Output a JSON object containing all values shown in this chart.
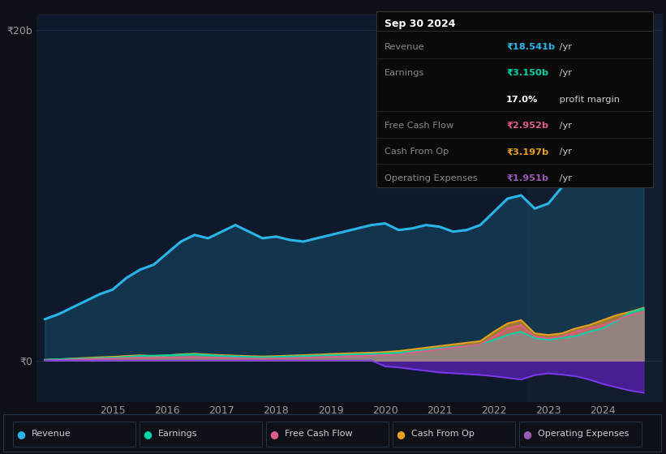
{
  "background_color": "#0d1117",
  "plot_bg_color": "#0e1a2b",
  "grid_color": "#253a50",
  "years": [
    2013.75,
    2014.0,
    2014.25,
    2014.5,
    2014.75,
    2015.0,
    2015.25,
    2015.5,
    2015.75,
    2016.0,
    2016.25,
    2016.5,
    2016.75,
    2017.0,
    2017.25,
    2017.5,
    2017.75,
    2018.0,
    2018.25,
    2018.5,
    2018.75,
    2019.0,
    2019.25,
    2019.5,
    2019.75,
    2020.0,
    2020.25,
    2020.5,
    2020.75,
    2021.0,
    2021.25,
    2021.5,
    2021.75,
    2022.0,
    2022.25,
    2022.5,
    2022.75,
    2023.0,
    2023.25,
    2023.5,
    2023.75,
    2024.0,
    2024.25,
    2024.5,
    2024.75
  ],
  "revenue": [
    2.5,
    2.8,
    3.2,
    3.6,
    4.0,
    4.3,
    5.0,
    5.5,
    5.8,
    6.5,
    7.2,
    7.6,
    7.4,
    7.8,
    8.2,
    7.8,
    7.4,
    7.5,
    7.3,
    7.2,
    7.4,
    7.6,
    7.8,
    8.0,
    8.2,
    8.3,
    7.9,
    8.0,
    8.2,
    8.1,
    7.8,
    7.9,
    8.2,
    9.0,
    9.8,
    10.0,
    9.2,
    9.5,
    10.5,
    11.5,
    12.5,
    13.5,
    16.0,
    18.0,
    18.541
  ],
  "earnings": [
    0.05,
    0.08,
    0.1,
    0.12,
    0.15,
    0.18,
    0.22,
    0.28,
    0.3,
    0.32,
    0.35,
    0.38,
    0.33,
    0.28,
    0.26,
    0.22,
    0.2,
    0.22,
    0.25,
    0.27,
    0.3,
    0.32,
    0.35,
    0.38,
    0.4,
    0.42,
    0.48,
    0.55,
    0.65,
    0.75,
    0.82,
    0.88,
    0.98,
    1.25,
    1.55,
    1.75,
    1.35,
    1.25,
    1.38,
    1.48,
    1.75,
    1.95,
    2.4,
    2.9,
    3.15
  ],
  "free_cash_flow": [
    0.01,
    0.03,
    0.05,
    0.08,
    0.1,
    0.12,
    0.15,
    0.18,
    0.16,
    0.18,
    0.2,
    0.22,
    0.18,
    0.17,
    0.15,
    0.13,
    0.11,
    0.13,
    0.15,
    0.17,
    0.2,
    0.22,
    0.25,
    0.28,
    0.3,
    0.32,
    0.35,
    0.48,
    0.58,
    0.68,
    0.78,
    0.88,
    0.98,
    1.45,
    1.95,
    2.15,
    1.45,
    1.35,
    1.45,
    1.75,
    1.95,
    2.15,
    2.45,
    2.75,
    2.952
  ],
  "cash_from_op": [
    0.05,
    0.08,
    0.12,
    0.16,
    0.2,
    0.23,
    0.28,
    0.32,
    0.28,
    0.32,
    0.38,
    0.42,
    0.37,
    0.33,
    0.3,
    0.27,
    0.25,
    0.27,
    0.3,
    0.33,
    0.36,
    0.4,
    0.43,
    0.46,
    0.48,
    0.52,
    0.58,
    0.68,
    0.78,
    0.88,
    0.98,
    1.08,
    1.18,
    1.75,
    2.25,
    2.45,
    1.65,
    1.55,
    1.65,
    1.95,
    2.15,
    2.45,
    2.75,
    2.95,
    3.197
  ],
  "op_expenses": [
    0.0,
    0.0,
    0.0,
    0.0,
    0.0,
    0.0,
    0.0,
    0.0,
    0.0,
    0.0,
    0.0,
    0.0,
    0.0,
    0.0,
    0.0,
    0.0,
    0.0,
    0.0,
    0.0,
    0.0,
    0.0,
    0.0,
    0.0,
    0.0,
    0.0,
    0.35,
    0.42,
    0.52,
    0.62,
    0.72,
    0.77,
    0.82,
    0.87,
    0.95,
    1.05,
    1.15,
    0.88,
    0.78,
    0.85,
    0.95,
    1.15,
    1.42,
    1.62,
    1.82,
    1.951
  ],
  "revenue_line_color": "#29b5e8",
  "revenue_fill_color": "#1a4a6b",
  "earnings_color": "#00d4aa",
  "free_cash_flow_color": "#e05c8a",
  "cash_from_op_color": "#e8a020",
  "op_expenses_color": "#7c3aed",
  "op_expenses_fill_color": "#5b21b6",
  "ylabel_top": "₹20b",
  "ylabel_zero": "₹0",
  "xtick_labels": [
    "2015",
    "2016",
    "2017",
    "2018",
    "2019",
    "2020",
    "2021",
    "2022",
    "2023",
    "2024"
  ],
  "xtick_positions": [
    2015,
    2016,
    2017,
    2018,
    2019,
    2020,
    2021,
    2022,
    2023,
    2024
  ],
  "ylim": [
    -2.5,
    21.0
  ],
  "xlim_start": 2013.6,
  "xlim_end": 2025.1,
  "shade_start": 2022.62,
  "tooltip": {
    "date": "Sep 30 2024",
    "date_color": "#ffffff",
    "rows": [
      {
        "label": "Revenue",
        "value": "₹18.541b",
        "suffix": " /yr",
        "value_color": "#29b5e8",
        "separator": true
      },
      {
        "label": "Earnings",
        "value": "₹3.150b",
        "suffix": " /yr",
        "value_color": "#00d4aa",
        "separator": false
      },
      {
        "label": "",
        "value": "17.0%",
        "suffix": " profit margin",
        "value_color": "#ffffff",
        "separator": true
      },
      {
        "label": "Free Cash Flow",
        "value": "₹2.952b",
        "suffix": " /yr",
        "value_color": "#e05c8a",
        "separator": true
      },
      {
        "label": "Cash From Op",
        "value": "₹3.197b",
        "suffix": " /yr",
        "value_color": "#e8a020",
        "separator": true
      },
      {
        "label": "Operating Expenses",
        "value": "₹1.951b",
        "suffix": " /yr",
        "value_color": "#9b59b6",
        "separator": false
      }
    ],
    "bg_color": "#0a0a0a",
    "border_color": "#333333",
    "label_color": "#888888",
    "text_color": "#cccccc"
  },
  "legend_items": [
    {
      "label": "Revenue",
      "color": "#29b5e8"
    },
    {
      "label": "Earnings",
      "color": "#00d4aa"
    },
    {
      "label": "Free Cash Flow",
      "color": "#e05c8a"
    },
    {
      "label": "Cash From Op",
      "color": "#e8a020"
    },
    {
      "label": "Operating Expenses",
      "color": "#9b59b6"
    }
  ]
}
